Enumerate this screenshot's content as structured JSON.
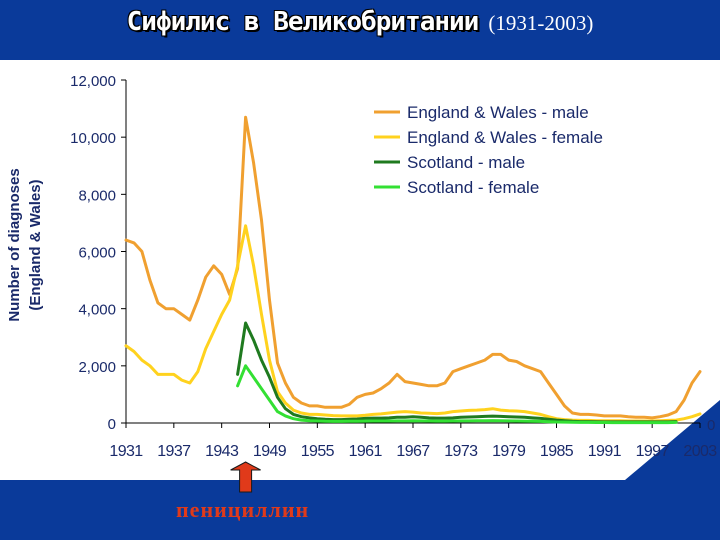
{
  "title": {
    "main": "Сифилис в Великобритании",
    "years": "(1931-2003)"
  },
  "annotation": {
    "text": "пенициллин",
    "year": 1946
  },
  "colors": {
    "background": "#0a3a9a",
    "panel": "#ffffff",
    "accent": "#e03a1a"
  },
  "chart_data": {
    "type": "line",
    "ylabel": "Number of diagnoses",
    "ylabel2": "(England & Wales)",
    "xlim": [
      1931,
      2003
    ],
    "ylim": [
      0,
      12000
    ],
    "x_ticks": [
      1931,
      1937,
      1943,
      1949,
      1955,
      1961,
      1967,
      1973,
      1979,
      1985,
      1991,
      1997,
      2003
    ],
    "y_ticks": [
      0,
      2000,
      4000,
      6000,
      8000,
      10000,
      12000
    ],
    "y_tick_labels": [
      "0",
      "2,000",
      "4,000",
      "6,000",
      "8,000",
      "10,000",
      "12,000"
    ],
    "right_axis_label": "0",
    "grid": false,
    "legend_position": "top-right",
    "series": [
      {
        "name": "England & Wales - male",
        "color": "#f0a030",
        "points": [
          [
            1931,
            6400
          ],
          [
            1932,
            6300
          ],
          [
            1933,
            6000
          ],
          [
            1934,
            5000
          ],
          [
            1935,
            4200
          ],
          [
            1936,
            4000
          ],
          [
            1937,
            4000
          ],
          [
            1938,
            3800
          ],
          [
            1939,
            3600
          ],
          [
            1940,
            4300
          ],
          [
            1941,
            5100
          ],
          [
            1942,
            5500
          ],
          [
            1943,
            5200
          ],
          [
            1944,
            4500
          ],
          [
            1945,
            5400
          ],
          [
            1946,
            10700
          ],
          [
            1947,
            9100
          ],
          [
            1948,
            7100
          ],
          [
            1949,
            4300
          ],
          [
            1950,
            2100
          ],
          [
            1951,
            1400
          ],
          [
            1952,
            900
          ],
          [
            1953,
            700
          ],
          [
            1954,
            600
          ],
          [
            1955,
            600
          ],
          [
            1956,
            550
          ],
          [
            1957,
            550
          ],
          [
            1958,
            550
          ],
          [
            1959,
            650
          ],
          [
            1960,
            900
          ],
          [
            1961,
            1000
          ],
          [
            1962,
            1050
          ],
          [
            1963,
            1200
          ],
          [
            1964,
            1400
          ],
          [
            1965,
            1700
          ],
          [
            1966,
            1450
          ],
          [
            1967,
            1400
          ],
          [
            1968,
            1350
          ],
          [
            1969,
            1300
          ],
          [
            1970,
            1300
          ],
          [
            1971,
            1400
          ],
          [
            1972,
            1800
          ],
          [
            1973,
            1900
          ],
          [
            1974,
            2000
          ],
          [
            1975,
            2100
          ],
          [
            1976,
            2200
          ],
          [
            1977,
            2400
          ],
          [
            1978,
            2400
          ],
          [
            1979,
            2200
          ],
          [
            1980,
            2150
          ],
          [
            1981,
            2000
          ],
          [
            1982,
            1900
          ],
          [
            1983,
            1800
          ],
          [
            1984,
            1400
          ],
          [
            1985,
            1000
          ],
          [
            1986,
            600
          ],
          [
            1987,
            350
          ],
          [
            1988,
            300
          ],
          [
            1989,
            300
          ],
          [
            1990,
            280
          ],
          [
            1991,
            250
          ],
          [
            1992,
            250
          ],
          [
            1993,
            250
          ],
          [
            1994,
            220
          ],
          [
            1995,
            200
          ],
          [
            1996,
            200
          ],
          [
            1997,
            180
          ],
          [
            1998,
            220
          ],
          [
            1999,
            280
          ],
          [
            2000,
            400
          ],
          [
            2001,
            800
          ],
          [
            2002,
            1400
          ],
          [
            2003,
            1800
          ]
        ]
      },
      {
        "name": "England & Wales - female",
        "color": "#ffd21e",
        "points": [
          [
            1931,
            2700
          ],
          [
            1932,
            2500
          ],
          [
            1933,
            2200
          ],
          [
            1934,
            2000
          ],
          [
            1935,
            1700
          ],
          [
            1936,
            1700
          ],
          [
            1937,
            1700
          ],
          [
            1938,
            1500
          ],
          [
            1939,
            1400
          ],
          [
            1940,
            1800
          ],
          [
            1941,
            2600
          ],
          [
            1942,
            3200
          ],
          [
            1943,
            3800
          ],
          [
            1944,
            4300
          ],
          [
            1945,
            5500
          ],
          [
            1946,
            6900
          ],
          [
            1947,
            5500
          ],
          [
            1948,
            3800
          ],
          [
            1949,
            2200
          ],
          [
            1950,
            1100
          ],
          [
            1951,
            700
          ],
          [
            1952,
            450
          ],
          [
            1953,
            350
          ],
          [
            1954,
            300
          ],
          [
            1955,
            300
          ],
          [
            1956,
            280
          ],
          [
            1957,
            260
          ],
          [
            1958,
            250
          ],
          [
            1959,
            250
          ],
          [
            1960,
            250
          ],
          [
            1961,
            270
          ],
          [
            1962,
            300
          ],
          [
            1963,
            320
          ],
          [
            1964,
            350
          ],
          [
            1965,
            380
          ],
          [
            1966,
            400
          ],
          [
            1967,
            380
          ],
          [
            1968,
            350
          ],
          [
            1969,
            340
          ],
          [
            1970,
            330
          ],
          [
            1971,
            350
          ],
          [
            1972,
            400
          ],
          [
            1973,
            420
          ],
          [
            1974,
            440
          ],
          [
            1975,
            450
          ],
          [
            1976,
            470
          ],
          [
            1977,
            500
          ],
          [
            1978,
            450
          ],
          [
            1979,
            430
          ],
          [
            1980,
            420
          ],
          [
            1981,
            400
          ],
          [
            1982,
            350
          ],
          [
            1983,
            300
          ],
          [
            1984,
            220
          ],
          [
            1985,
            150
          ],
          [
            1986,
            120
          ],
          [
            1987,
            100
          ],
          [
            1988,
            90
          ],
          [
            1989,
            90
          ],
          [
            1990,
            80
          ],
          [
            1991,
            80
          ],
          [
            1992,
            80
          ],
          [
            1993,
            80
          ],
          [
            1994,
            70
          ],
          [
            1995,
            70
          ],
          [
            1996,
            70
          ],
          [
            1997,
            70
          ],
          [
            1998,
            80
          ],
          [
            1999,
            90
          ],
          [
            2000,
            100
          ],
          [
            2001,
            150
          ],
          [
            2002,
            220
          ],
          [
            2003,
            320
          ]
        ]
      },
      {
        "name": "Scotland - male",
        "color": "#1f7a1f",
        "points": [
          [
            1945,
            1700
          ],
          [
            1946,
            3500
          ],
          [
            1947,
            2900
          ],
          [
            1948,
            2200
          ],
          [
            1949,
            1600
          ],
          [
            1950,
            900
          ],
          [
            1951,
            500
          ],
          [
            1952,
            300
          ],
          [
            1953,
            220
          ],
          [
            1954,
            180
          ],
          [
            1955,
            150
          ],
          [
            1956,
            130
          ],
          [
            1957,
            120
          ],
          [
            1958,
            120
          ],
          [
            1959,
            130
          ],
          [
            1960,
            140
          ],
          [
            1961,
            160
          ],
          [
            1962,
            170
          ],
          [
            1963,
            170
          ],
          [
            1964,
            180
          ],
          [
            1965,
            200
          ],
          [
            1966,
            200
          ],
          [
            1967,
            220
          ],
          [
            1968,
            200
          ],
          [
            1969,
            180
          ],
          [
            1970,
            170
          ],
          [
            1971,
            170
          ],
          [
            1972,
            180
          ],
          [
            1973,
            200
          ],
          [
            1974,
            210
          ],
          [
            1975,
            220
          ],
          [
            1976,
            230
          ],
          [
            1977,
            240
          ],
          [
            1978,
            230
          ],
          [
            1979,
            220
          ],
          [
            1980,
            210
          ],
          [
            1981,
            200
          ],
          [
            1982,
            180
          ],
          [
            1983,
            160
          ],
          [
            1984,
            130
          ],
          [
            1985,
            100
          ],
          [
            1986,
            80
          ],
          [
            1987,
            60
          ],
          [
            1988,
            50
          ],
          [
            1989,
            50
          ],
          [
            1990,
            45
          ],
          [
            1991,
            40
          ],
          [
            1992,
            40
          ],
          [
            1993,
            40
          ],
          [
            1994,
            40
          ],
          [
            1995,
            40
          ],
          [
            1996,
            40
          ],
          [
            1997,
            40
          ],
          [
            1998,
            40
          ],
          [
            1999,
            40
          ],
          [
            2000,
            50
          ]
        ]
      },
      {
        "name": "Scotland - female",
        "color": "#33e033",
        "points": [
          [
            1945,
            1300
          ],
          [
            1946,
            2000
          ],
          [
            1947,
            1600
          ],
          [
            1948,
            1200
          ],
          [
            1949,
            800
          ],
          [
            1950,
            400
          ],
          [
            1951,
            250
          ],
          [
            1952,
            150
          ],
          [
            1953,
            100
          ],
          [
            1954,
            80
          ],
          [
            1955,
            70
          ],
          [
            1956,
            60
          ],
          [
            1957,
            55
          ],
          [
            1958,
            55
          ],
          [
            1959,
            60
          ],
          [
            1960,
            60
          ],
          [
            1961,
            65
          ],
          [
            1962,
            70
          ],
          [
            1963,
            70
          ],
          [
            1964,
            70
          ],
          [
            1965,
            75
          ],
          [
            1966,
            75
          ],
          [
            1967,
            80
          ],
          [
            1968,
            75
          ],
          [
            1969,
            70
          ],
          [
            1970,
            65
          ],
          [
            1971,
            65
          ],
          [
            1972,
            70
          ],
          [
            1973,
            75
          ],
          [
            1974,
            75
          ],
          [
            1975,
            80
          ],
          [
            1976,
            80
          ],
          [
            1977,
            85
          ],
          [
            1978,
            80
          ],
          [
            1979,
            75
          ],
          [
            1980,
            70
          ],
          [
            1981,
            65
          ],
          [
            1982,
            60
          ],
          [
            1983,
            55
          ],
          [
            1984,
            45
          ],
          [
            1985,
            35
          ],
          [
            1986,
            30
          ],
          [
            1987,
            25
          ],
          [
            1988,
            20
          ],
          [
            1989,
            20
          ],
          [
            1990,
            18
          ],
          [
            1991,
            16
          ],
          [
            1992,
            15
          ],
          [
            1993,
            15
          ],
          [
            1994,
            15
          ],
          [
            1995,
            15
          ],
          [
            1996,
            15
          ],
          [
            1997,
            15
          ],
          [
            1998,
            15
          ],
          [
            1999,
            15
          ],
          [
            2000,
            20
          ]
        ]
      }
    ]
  }
}
